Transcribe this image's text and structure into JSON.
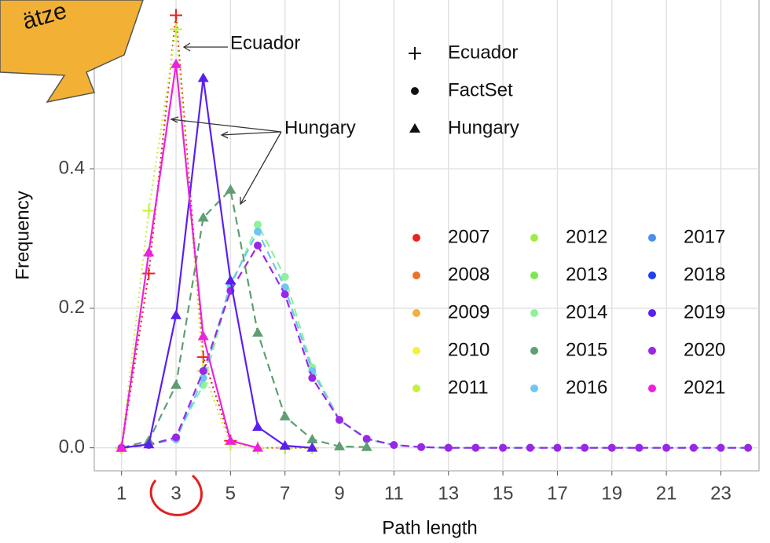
{
  "chart_data": {
    "type": "line",
    "x_label": "Path length",
    "y_label": "Frequency",
    "x": [
      1,
      2,
      3,
      4,
      5,
      6,
      7,
      8,
      9,
      10,
      11,
      12,
      13,
      14,
      15,
      16,
      17,
      18,
      19,
      20,
      21,
      22,
      23,
      24
    ],
    "xlim": [
      0,
      24.4
    ],
    "xticks": [
      1,
      3,
      5,
      7,
      9,
      11,
      13,
      15,
      17,
      19,
      21,
      23
    ],
    "ylim": [
      -0.033,
      0.642
    ],
    "yticks": [
      {
        "value": 0,
        "label": "0.0"
      },
      {
        "value": 0.2,
        "label": "0.2"
      },
      {
        "value": 0.4,
        "label": "0.4"
      }
    ],
    "grid": true,
    "marker_legend": [
      {
        "name": "Ecuador",
        "marker": "plus"
      },
      {
        "name": "FactSet",
        "marker": "dot"
      },
      {
        "name": "Hungary",
        "marker": "triangle"
      }
    ],
    "color_legend": [
      {
        "name": "2007",
        "color": "#e8241c"
      },
      {
        "name": "2008",
        "color": "#e8732a"
      },
      {
        "name": "2009",
        "color": "#efb23a"
      },
      {
        "name": "2010",
        "color": "#f2f23a"
      },
      {
        "name": "2011",
        "color": "#c4f23a"
      },
      {
        "name": "2012",
        "color": "#9cee46"
      },
      {
        "name": "2013",
        "color": "#7be84d"
      },
      {
        "name": "2014",
        "color": "#8ef29a"
      },
      {
        "name": "2015",
        "color": "#5e9e72"
      },
      {
        "name": "2016",
        "color": "#6ec6f2"
      },
      {
        "name": "2017",
        "color": "#4a8ef0"
      },
      {
        "name": "2018",
        "color": "#1f3ff0"
      },
      {
        "name": "2019",
        "color": "#5a1ff0"
      },
      {
        "name": "2020",
        "color": "#9a26e8"
      },
      {
        "name": "2021",
        "color": "#ee20e0"
      }
    ],
    "series": [
      {
        "name": "Ecuador 2007",
        "color": "#e8241c",
        "marker": "plus",
        "line": "dotted",
        "values": [
          0,
          0.25,
          0.62,
          0.13,
          0.01,
          0,
          0,
          0,
          null,
          null,
          null,
          null,
          null,
          null,
          null,
          null,
          null,
          null,
          null,
          null,
          null,
          null,
          null,
          null
        ]
      },
      {
        "name": "Ecuador 2011",
        "color": "#c4f23a",
        "marker": "plus",
        "line": "dotted",
        "values": [
          0,
          0.34,
          0.6,
          0.11,
          0.005,
          0,
          0,
          0,
          null,
          null,
          null,
          null,
          null,
          null,
          null,
          null,
          null,
          null,
          null,
          null,
          null,
          null,
          null,
          null
        ]
      },
      {
        "name": "FactSet 2014",
        "color": "#8ef29a",
        "marker": "dot",
        "line": "dashed",
        "values": [
          0,
          0.005,
          0.015,
          0.09,
          0.23,
          0.32,
          0.245,
          0.115,
          0.04,
          0.012,
          0.004,
          0.001,
          0,
          0,
          0,
          0,
          0,
          0,
          0,
          0,
          0,
          0,
          0,
          0
        ]
      },
      {
        "name": "FactSet 2016",
        "color": "#6ec6f2",
        "marker": "dot",
        "line": "dashed",
        "values": [
          0,
          0.005,
          0.012,
          0.1,
          0.235,
          0.31,
          0.23,
          0.11,
          0.04,
          0.012,
          0.004,
          0.001,
          0,
          0,
          0,
          0,
          0,
          0,
          0,
          0,
          0,
          0,
          0,
          0
        ]
      },
      {
        "name": "FactSet 2020",
        "color": "#9a26e8",
        "marker": "dot",
        "line": "dashed",
        "values": [
          0,
          0.004,
          0.015,
          0.11,
          0.225,
          0.29,
          0.22,
          0.1,
          0.04,
          0.013,
          0.004,
          0.001,
          0,
          0,
          0,
          0,
          0,
          0,
          0,
          0,
          0,
          0,
          0,
          0
        ]
      },
      {
        "name": "Hungary 2015",
        "color": "#5e9e72",
        "marker": "triangle",
        "line": "dashed",
        "values": [
          0,
          0.01,
          0.09,
          0.33,
          0.37,
          0.165,
          0.045,
          0.012,
          0.002,
          0.001,
          null,
          null,
          null,
          null,
          null,
          null,
          null,
          null,
          null,
          null,
          null,
          null,
          null,
          null
        ]
      },
      {
        "name": "Hungary 2019",
        "color": "#5a1ff0",
        "marker": "triangle",
        "line": "solid",
        "values": [
          0,
          0.005,
          0.19,
          0.53,
          0.24,
          0.03,
          0.003,
          0,
          null,
          null,
          null,
          null,
          null,
          null,
          null,
          null,
          null,
          null,
          null,
          null,
          null,
          null,
          null,
          null
        ]
      },
      {
        "name": "Hungary 2021",
        "color": "#ee20e0",
        "marker": "triangle",
        "line": "solid",
        "values": [
          0,
          0.28,
          0.55,
          0.16,
          0.01,
          0,
          null,
          null,
          null,
          null,
          null,
          null,
          null,
          null,
          null,
          null,
          null,
          null,
          null,
          null,
          null,
          null,
          null,
          null
        ]
      }
    ],
    "annotations": [
      "Ecuador",
      "Hungary",
      "ätze"
    ]
  }
}
